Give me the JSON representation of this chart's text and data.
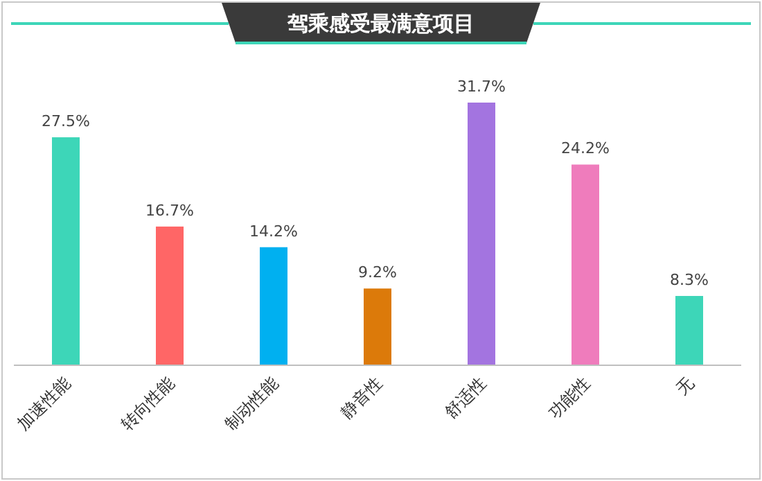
{
  "chart_data": {
    "type": "bar",
    "title": "驾乘感受最满意项目",
    "categories": [
      "加速性能",
      "转向性能",
      "制动性能",
      "静音性",
      "舒适性",
      "功能性",
      "无"
    ],
    "values": [
      27.5,
      16.7,
      14.2,
      9.2,
      31.7,
      24.2,
      8.3
    ],
    "value_labels": [
      "27.5%",
      "16.7%",
      "14.2%",
      "9.2%",
      "31.7%",
      "24.2%",
      "8.3%"
    ],
    "colors": [
      "#3dd6b8",
      "#ff6666",
      "#00b0f0",
      "#dc7a0a",
      "#a374e0",
      "#ef7cbc",
      "#3dd6b8"
    ]
  }
}
